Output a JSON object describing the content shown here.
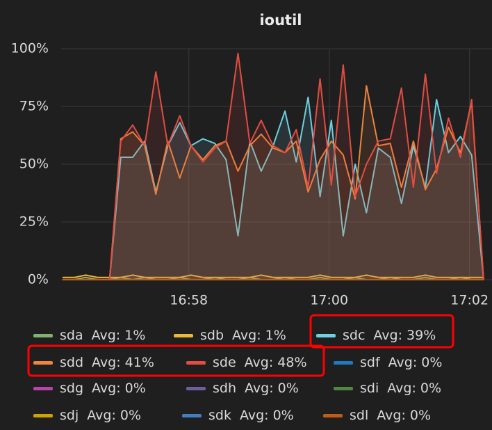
{
  "chart_data": {
    "type": "line",
    "title": "ioutil",
    "x": [
      1016.2,
      1016.37,
      1016.53,
      1016.7,
      1016.87,
      1017.03,
      1017.2,
      1017.37,
      1017.53,
      1017.7,
      1017.87,
      1018.03,
      1018.2,
      1018.37,
      1018.53,
      1018.7,
      1018.87,
      1019.03,
      1019.2,
      1019.37,
      1019.53,
      1019.7,
      1019.87,
      1020.03,
      1020.2,
      1020.37,
      1020.53,
      1020.7,
      1020.87,
      1021.03,
      1021.2,
      1021.37,
      1021.53,
      1021.7,
      1021.87,
      1022.03,
      1022.2
    ],
    "xlim": [
      1016.18,
      1022.32
    ],
    "xticks": [
      {
        "value": 1018,
        "label": "16:58"
      },
      {
        "value": 1020,
        "label": "17:00"
      },
      {
        "value": 1022,
        "label": "17:02"
      }
    ],
    "ylim": [
      0,
      100
    ],
    "yticks": [
      {
        "value": 0,
        "label": "0%"
      },
      {
        "value": 25,
        "label": "25%"
      },
      {
        "value": 50,
        "label": "50%"
      },
      {
        "value": 75,
        "label": "75%"
      },
      {
        "value": 100,
        "label": "100%"
      }
    ],
    "grid": true,
    "series": [
      {
        "name": "sda",
        "avg_label": "Avg: 1%",
        "color": "#7eb26d",
        "values": [
          0,
          0,
          1,
          0,
          0,
          1,
          0,
          1,
          0,
          0,
          1,
          0,
          0,
          1,
          0,
          0,
          1,
          0,
          0,
          1,
          0,
          0,
          1,
          0,
          0,
          1,
          0,
          0,
          1,
          0,
          0,
          1,
          0,
          0,
          1,
          0,
          0
        ]
      },
      {
        "name": "sdb",
        "avg_label": "Avg: 1%",
        "color": "#eab839",
        "values": [
          1,
          1,
          2,
          1,
          1,
          1,
          2,
          1,
          1,
          1,
          1,
          2,
          1,
          1,
          1,
          1,
          1,
          2,
          1,
          1,
          1,
          1,
          2,
          1,
          1,
          1,
          2,
          1,
          1,
          1,
          1,
          2,
          1,
          1,
          1,
          1,
          1
        ]
      },
      {
        "name": "sdc",
        "avg_label": "Avg: 39%",
        "color": "#6ed0e0",
        "values": [
          0,
          0,
          0,
          0,
          0,
          53,
          53,
          60,
          38,
          58,
          68,
          58,
          61,
          59,
          52,
          19,
          60,
          47,
          58,
          73,
          51,
          79,
          36,
          69,
          19,
          50,
          29,
          57,
          53,
          33,
          58,
          40,
          78,
          55,
          62,
          54,
          0
        ]
      },
      {
        "name": "sdd",
        "avg_label": "Avg: 41%",
        "color": "#ef843c",
        "values": [
          0,
          0,
          0,
          0,
          0,
          61,
          64,
          58,
          37,
          60,
          44,
          58,
          52,
          58,
          60,
          47,
          58,
          63,
          57,
          55,
          60,
          38,
          52,
          60,
          54,
          35,
          84,
          58,
          59,
          40,
          60,
          39,
          48,
          66,
          55,
          77,
          0
        ]
      },
      {
        "name": "sde",
        "avg_label": "Avg: 48%",
        "color": "#e24d42",
        "values": [
          0,
          0,
          0,
          0,
          0,
          60,
          67,
          58,
          90,
          58,
          71,
          58,
          51,
          57,
          60,
          98,
          59,
          69,
          58,
          55,
          65,
          40,
          87,
          41,
          93,
          36,
          50,
          60,
          61,
          83,
          40,
          89,
          46,
          70,
          53,
          78,
          0
        ]
      },
      {
        "name": "sdf",
        "avg_label": "Avg: 0%",
        "color": "#1f78c1",
        "values": [
          0,
          0,
          0,
          0,
          0,
          0,
          0,
          0,
          0,
          0,
          0,
          0,
          0,
          0,
          0,
          0,
          0,
          0,
          0,
          0,
          0,
          0,
          0,
          0,
          0,
          0,
          0,
          0,
          0,
          0,
          0,
          0,
          0,
          0,
          0,
          0,
          0
        ]
      },
      {
        "name": "sdg",
        "avg_label": "Avg: 0%",
        "color": "#ba43a9",
        "values": [
          0,
          0,
          0,
          0,
          0,
          0,
          0,
          0,
          0,
          0,
          0,
          0,
          0,
          0,
          0,
          0,
          0,
          0,
          0,
          0,
          0,
          0,
          0,
          0,
          0,
          0,
          0,
          0,
          0,
          0,
          0,
          0,
          0,
          0,
          0,
          0,
          0
        ]
      },
      {
        "name": "sdh",
        "avg_label": "Avg: 0%",
        "color": "#705da0",
        "values": [
          0,
          0,
          0,
          0,
          0,
          0,
          0,
          0,
          0,
          0,
          0,
          0,
          0,
          0,
          0,
          0,
          0,
          0,
          0,
          0,
          0,
          0,
          0,
          0,
          0,
          0,
          0,
          0,
          0,
          0,
          0,
          0,
          0,
          0,
          0,
          0,
          0
        ]
      },
      {
        "name": "sdi",
        "avg_label": "Avg: 0%",
        "color": "#508642",
        "values": [
          0,
          0,
          0,
          0,
          0,
          0,
          0,
          0,
          0,
          0,
          0,
          0,
          0,
          0,
          0,
          0,
          0,
          0,
          0,
          0,
          0,
          0,
          0,
          0,
          0,
          0,
          0,
          0,
          0,
          0,
          0,
          0,
          0,
          0,
          0,
          0,
          0
        ]
      },
      {
        "name": "sdj",
        "avg_label": "Avg: 0%",
        "color": "#cca300",
        "values": [
          0,
          0,
          0,
          0,
          0,
          0,
          0,
          0,
          0,
          0,
          0,
          0,
          0,
          0,
          0,
          0,
          0,
          0,
          0,
          0,
          0,
          0,
          0,
          0,
          0,
          0,
          0,
          0,
          0,
          0,
          0,
          0,
          0,
          0,
          0,
          0,
          0
        ]
      },
      {
        "name": "sdk",
        "avg_label": "Avg: 0%",
        "color": "#447ebc",
        "values": [
          0,
          0,
          0,
          0,
          0,
          0,
          0,
          0,
          0,
          0,
          0,
          0,
          0,
          0,
          0,
          0,
          0,
          0,
          0,
          0,
          0,
          0,
          0,
          0,
          0,
          0,
          0,
          0,
          0,
          0,
          0,
          0,
          0,
          0,
          0,
          0,
          0
        ]
      },
      {
        "name": "sdl",
        "avg_label": "Avg: 0%",
        "color": "#c15c17",
        "values": [
          0,
          0,
          0,
          0,
          0,
          0,
          0,
          0,
          0,
          0,
          0,
          0,
          0,
          0,
          0,
          0,
          0,
          0,
          0,
          0,
          0,
          0,
          0,
          0,
          0,
          0,
          0,
          0,
          0,
          0,
          0,
          0,
          0,
          0,
          0,
          0,
          0
        ]
      }
    ]
  }
}
